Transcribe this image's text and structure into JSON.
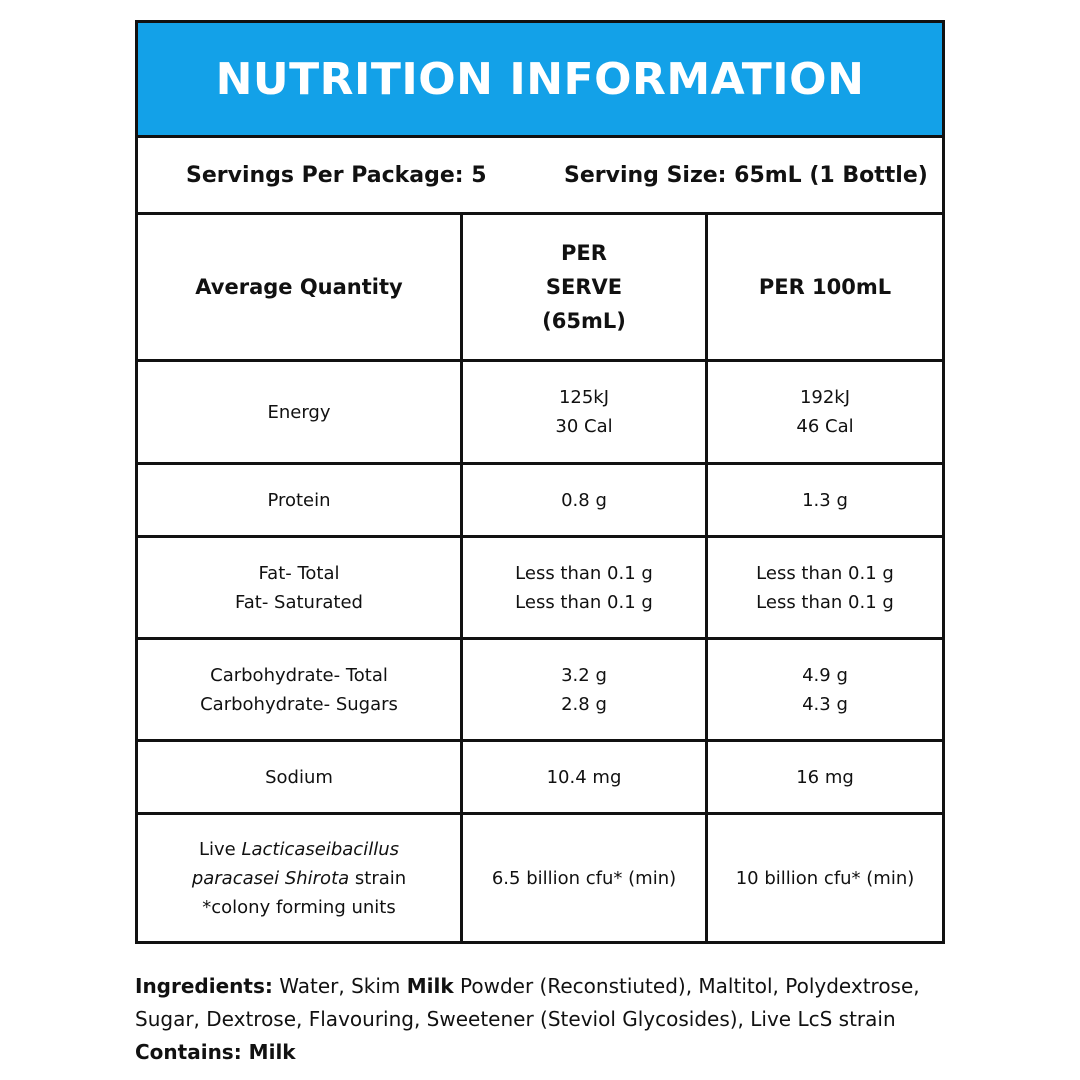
{
  "title": "NUTRITION INFORMATION",
  "servings": {
    "per_package": "Servings Per Package: 5",
    "serving_size": "Serving Size: 65mL (1 Bottle)"
  },
  "headers": {
    "quantity": "Average Quantity",
    "per_serve_line1": "PER",
    "per_serve_line2": "SERVE",
    "per_serve_line3": "(65mL)",
    "per_100": "PER 100mL"
  },
  "rows": [
    {
      "label": [
        "Energy"
      ],
      "serve": [
        "125kJ",
        "30 Cal"
      ],
      "per100": [
        "192kJ",
        "46 Cal"
      ]
    },
    {
      "label": [
        "Protein"
      ],
      "serve": [
        "0.8 g"
      ],
      "per100": [
        "1.3 g"
      ]
    },
    {
      "label": [
        "Fat- Total",
        "Fat- Saturated"
      ],
      "serve": [
        "Less than 0.1 g",
        "Less than 0.1 g"
      ],
      "per100": [
        "Less than 0.1 g",
        "Less than 0.1 g"
      ]
    },
    {
      "label": [
        "Carbohydrate- Total",
        "Carbohydrate- Sugars"
      ],
      "serve": [
        "3.2 g",
        "2.8 g"
      ],
      "per100": [
        "4.9 g",
        "4.3 g"
      ]
    },
    {
      "label": [
        "Sodium"
      ],
      "serve": [
        "10.4 mg"
      ],
      "per100": [
        "16 mg"
      ]
    }
  ],
  "probiotic": {
    "prefix": "Live ",
    "italic1": "Lacticaseibacillus",
    "italic2": "paracasei Shirota",
    "suffix": " strain",
    "footnote": "*colony forming units",
    "serve": "6.5 billion cfu* (min)",
    "per100": "10 billion cfu* (min)"
  },
  "ingredients": {
    "label": "Ingredients:",
    "text1": " Water, Skim ",
    "milk": "Milk",
    "text2": " Powder (Reconstiuted), Maltitol, Polydextrose,",
    "text3": "Sugar, Dextrose, Flavouring, Sweetener (Steviol Glycosides), Live LcS strain",
    "contains_label": "Contains:",
    "contains_value": " Milk"
  }
}
